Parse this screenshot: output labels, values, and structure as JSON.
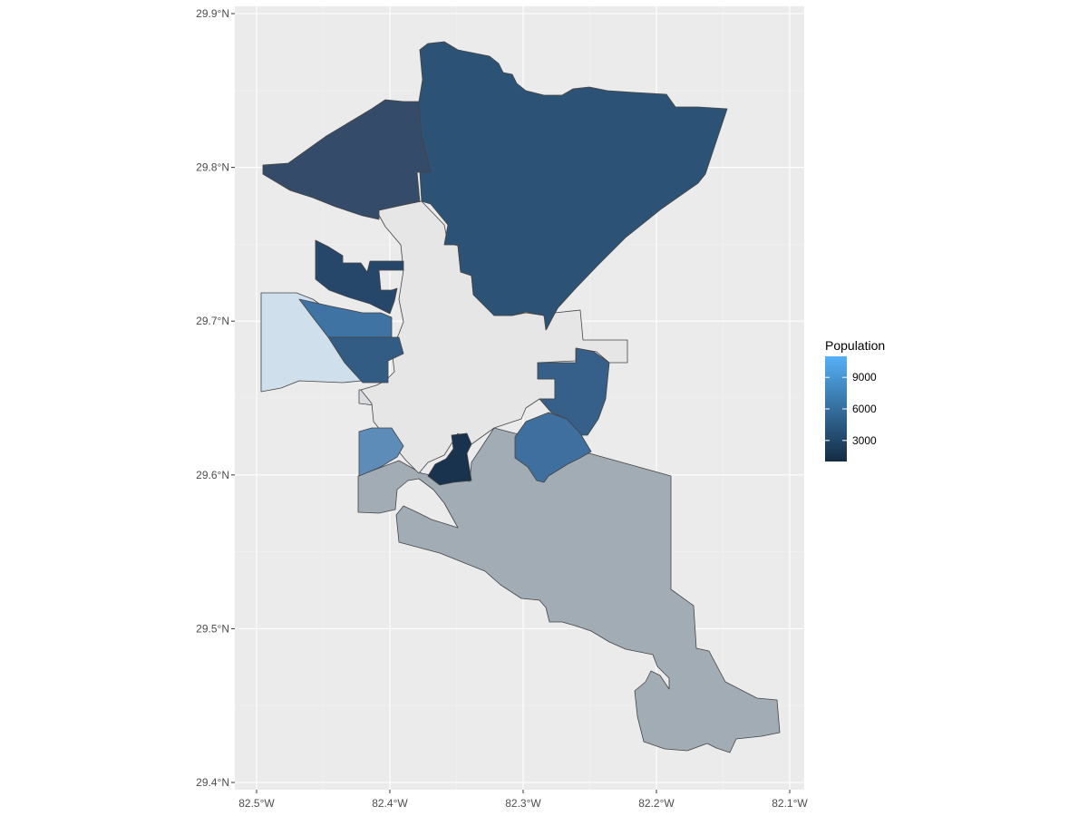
{
  "chart_data": {
    "type": "choropleth",
    "x_axis": {
      "range": [
        -82.5,
        -82.1
      ],
      "ticks": [
        {
          "value": -82.5,
          "label": "82.5°W"
        },
        {
          "value": -82.4,
          "label": "82.4°W"
        },
        {
          "value": -82.3,
          "label": "82.3°W"
        },
        {
          "value": -82.2,
          "label": "82.2°W"
        },
        {
          "value": -82.1,
          "label": "82.1°W"
        }
      ]
    },
    "y_axis": {
      "range": [
        29.4,
        29.9
      ],
      "ticks": [
        {
          "value": 29.9,
          "label": "29.9°N"
        },
        {
          "value": 29.8,
          "label": "29.8°N"
        },
        {
          "value": 29.7,
          "label": "29.7°N"
        },
        {
          "value": 29.6,
          "label": "29.6°N"
        },
        {
          "value": 29.5,
          "label": "29.5°N"
        },
        {
          "value": 29.4,
          "label": "29.4°N"
        }
      ]
    },
    "grid": true,
    "legend": {
      "title": "Population",
      "position": "right",
      "scale_low_color": "#132b43",
      "scale_high_color": "#56b1f7",
      "range": [
        1000,
        11000
      ],
      "breaks": [
        {
          "value": 9000,
          "label": "9000"
        },
        {
          "value": 6000,
          "label": "6000"
        },
        {
          "value": 3000,
          "label": "3000"
        }
      ]
    },
    "regions": [
      {
        "name": "north-large-tract",
        "color": "#2c5375",
        "population": 5600
      },
      {
        "name": "northwest-tract",
        "color": "#344c69",
        "population": 4700
      },
      {
        "name": "west-upper-tract",
        "color": "#27476a",
        "population": 4000
      },
      {
        "name": "west-blue-tract",
        "color": "#3f73a3",
        "population": 6800
      },
      {
        "name": "west-mid-tract",
        "color": "#335c84",
        "population": 5000
      },
      {
        "name": "far-west-light-tract",
        "color": "#cfdfec",
        "population": null
      },
      {
        "name": "west-lower-tract",
        "color": "#5d8cb8",
        "population": 8000
      },
      {
        "name": "central-dark-tract",
        "color": "#19324d",
        "population": 2000
      },
      {
        "name": "east-tract",
        "color": "#365f8a",
        "population": 5500
      },
      {
        "name": "southeast-blue-tract",
        "color": "#3e6f9f",
        "population": 6600
      },
      {
        "name": "south-large-tract",
        "color": "#a2acb5",
        "population": null
      },
      {
        "name": "central-city",
        "color": "#e6e6e6",
        "population": null
      }
    ]
  }
}
